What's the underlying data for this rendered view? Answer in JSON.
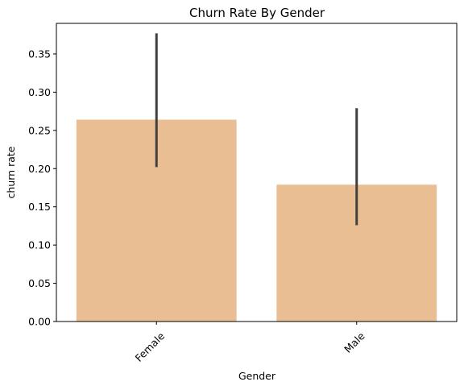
{
  "chart_data": {
    "type": "bar",
    "title": "Churn Rate By Gender",
    "xlabel": "Gender",
    "ylabel": "churn rate",
    "categories": [
      "Female",
      "Male"
    ],
    "values": [
      0.264,
      0.179
    ],
    "error_bars": [
      {
        "low": 0.202,
        "high": 0.377
      },
      {
        "low": 0.126,
        "high": 0.279
      }
    ],
    "ylim": [
      0,
      0.39
    ],
    "yticks": [
      0.0,
      0.05,
      0.1,
      0.15,
      0.2,
      0.25,
      0.3,
      0.35
    ],
    "ytick_labels": [
      "0.00",
      "0.05",
      "0.10",
      "0.15",
      "0.20",
      "0.25",
      "0.30",
      "0.35"
    ],
    "xtick_rotation_deg": 45,
    "bar_color": "#eabe93",
    "error_color": "#404040",
    "grid": false
  }
}
